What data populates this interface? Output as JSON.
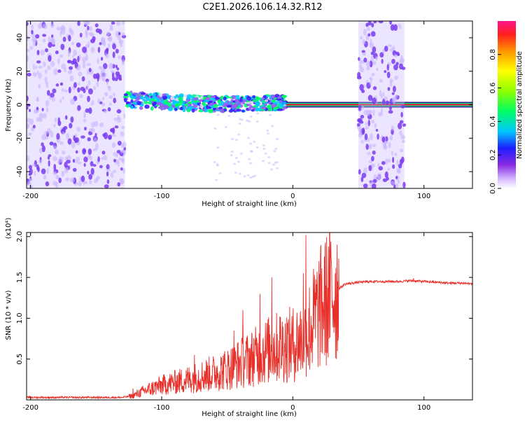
{
  "title": "C2E1.2026.106.14.32.R12",
  "colors": {
    "snr_line": "#e8302a",
    "carrier": "#e01e3c",
    "noise": "#7a3cf0",
    "noise_light": "#c8b4ff",
    "frame": "#000000"
  },
  "chart_data": [
    {
      "type": "heatmap",
      "title": "C2E1.2026.106.14.32.R12",
      "xlabel": "Height of straight line (km)",
      "ylabel": "Frequency (Hz)",
      "xlim": [
        -203,
        137
      ],
      "ylim": [
        -50,
        50
      ],
      "x_ticks": [
        -200,
        -100,
        0,
        100
      ],
      "x_tick_labels": [
        "-200",
        "-100",
        "0",
        "100"
      ],
      "y_ticks": [
        -40,
        -20,
        0,
        20,
        40
      ],
      "y_tick_labels": [
        "-40",
        "-20",
        "0",
        "20",
        "40"
      ],
      "colorbar": {
        "label": "Normalized spectral amplitude",
        "range": [
          0,
          1
        ],
        "ticks": [
          0.0,
          0.2,
          0.4,
          0.6,
          0.8
        ],
        "tick_labels": [
          "0.0",
          "0.2",
          "0.4",
          "0.6",
          "0.8"
        ]
      },
      "regions": [
        {
          "name": "broadband noise",
          "x": [
            -203,
            -128
          ],
          "f": [
            -50,
            50
          ]
        },
        {
          "name": "signal trace (scintillating)",
          "x": [
            -128,
            -5
          ],
          "f_center": [
            3,
            -2
          ],
          "amplitude": [
            0.1,
            0.55
          ]
        },
        {
          "name": "steady carrier",
          "x": [
            -5,
            137
          ],
          "f_center": [
            0,
            0
          ],
          "amplitude": 0.95
        },
        {
          "name": "broadband noise",
          "x": [
            50,
            85
          ],
          "f": [
            -50,
            50
          ]
        }
      ]
    },
    {
      "type": "line",
      "xlabel": "Height of straight line (km)",
      "ylabel": "SNR (10 * v/v)",
      "y_scale_label": "(x10⁴)",
      "xlim": [
        -203,
        137
      ],
      "ylim": [
        0,
        2.05
      ],
      "x_ticks": [
        -200,
        -100,
        0,
        100
      ],
      "x_tick_labels": [
        "-200",
        "-100",
        "0",
        "100"
      ],
      "y_ticks": [
        0.5,
        1.0,
        1.5,
        2.0
      ],
      "y_tick_labels": [
        "0.5",
        "1.0",
        "1.5",
        "2.0"
      ],
      "series": [
        {
          "x": [
            -203,
            -180,
            -150,
            -130,
            -122,
            -115,
            -100,
            -80,
            -60,
            -50,
            -40,
            -30,
            -20,
            -10,
            0,
            5,
            10,
            15,
            20,
            30,
            40,
            50,
            60,
            70,
            80,
            90,
            100,
            110,
            120,
            130,
            137
          ],
          "y": [
            0.03,
            0.03,
            0.03,
            0.03,
            0.05,
            0.1,
            0.18,
            0.25,
            0.33,
            0.38,
            0.45,
            0.52,
            0.6,
            0.65,
            0.68,
            0.72,
            0.8,
            0.95,
            1.1,
            1.3,
            1.42,
            1.44,
            1.45,
            1.45,
            1.45,
            1.46,
            1.45,
            1.44,
            1.43,
            1.43,
            1.42
          ],
          "spikes": [
            [
              -122,
              0.14
            ],
            [
              -75,
              0.55
            ],
            [
              -45,
              0.85
            ],
            [
              -38,
              1.1
            ],
            [
              -25,
              1.3
            ],
            [
              -16,
              1.5
            ],
            [
              -10,
              1.02
            ],
            [
              0,
              0.95
            ],
            [
              8,
              1.55
            ],
            [
              10,
              2.02
            ],
            [
              12,
              0.42
            ],
            [
              92,
              1.49
            ]
          ]
        }
      ]
    }
  ]
}
